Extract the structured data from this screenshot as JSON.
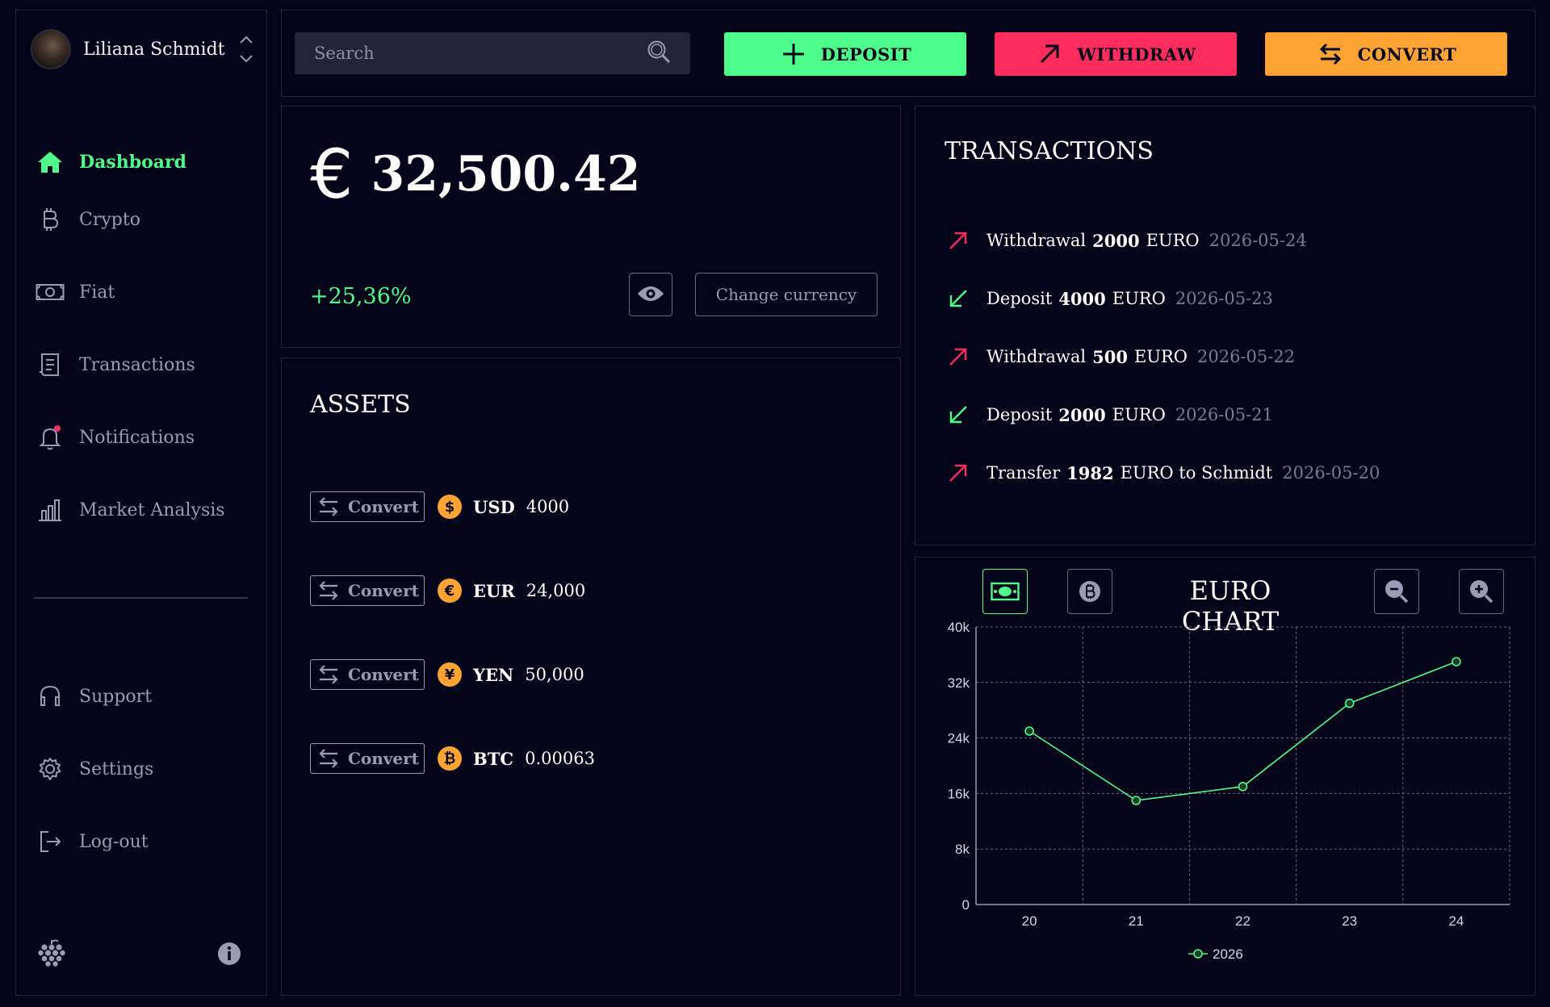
{
  "user": {
    "name": "Liliana Schmidt"
  },
  "nav": {
    "items": [
      {
        "label": "Dashboard",
        "icon": "home-icon"
      },
      {
        "label": "Crypto",
        "icon": "bitcoin-icon"
      },
      {
        "label": "Fiat",
        "icon": "banknote-icon"
      },
      {
        "label": "Transactions",
        "icon": "receipt-icon"
      },
      {
        "label": "Notifications",
        "icon": "bell-icon"
      },
      {
        "label": "Market Analysis",
        "icon": "bar-chart-icon"
      }
    ],
    "bottom": [
      {
        "label": "Support",
        "icon": "headset-icon"
      },
      {
        "label": "Settings",
        "icon": "gear-icon"
      },
      {
        "label": "Log-out",
        "icon": "logout-icon"
      }
    ]
  },
  "search": {
    "placeholder": "Search"
  },
  "actions": {
    "deposit": "DEPOSIT",
    "withdraw": "WITHDRAW",
    "convert": "CONVERT"
  },
  "balance": {
    "currency_symbol": "€",
    "amount": "32,500.42",
    "change": "+25,36%",
    "change_currency_label": "Change currency"
  },
  "assets": {
    "title": "ASSETS",
    "convert_label": "Convert",
    "items": [
      {
        "symbol": "$",
        "code": "USD",
        "amount": "4000"
      },
      {
        "symbol": "€",
        "code": "EUR",
        "amount": "24,000"
      },
      {
        "symbol": "¥",
        "code": "YEN",
        "amount": "50,000"
      },
      {
        "symbol": "₿",
        "code": "BTC",
        "amount": "0.00063"
      }
    ]
  },
  "transactions": {
    "title": "TRANSACTIONS",
    "items": [
      {
        "direction": "out",
        "type": "Withdrawal",
        "amount": "2000",
        "currency": "EURO",
        "date": "2026-05-24"
      },
      {
        "direction": "in",
        "type": "Deposit",
        "amount": "4000",
        "currency": "EURO",
        "date": "2026-05-23"
      },
      {
        "direction": "out",
        "type": "Withdrawal",
        "amount": "500",
        "currency": "EURO",
        "date": "2026-05-22"
      },
      {
        "direction": "in",
        "type": "Deposit",
        "amount": "2000",
        "currency": "EURO",
        "date": "2026-05-21"
      },
      {
        "direction": "out",
        "type": "Transfer",
        "amount": "1982",
        "currency": "EURO to Schmidt",
        "date": "2026-05-20"
      }
    ]
  },
  "colors": {
    "accent_green": "#4dff8a",
    "accent_red": "#ff2d5e",
    "accent_orange": "#ffa333",
    "background": "#03031a"
  },
  "chart_data": {
    "type": "line",
    "title": "EURO CHART",
    "categories": [
      "20",
      "21",
      "22",
      "23",
      "24"
    ],
    "series": [
      {
        "name": "2026",
        "values": [
          25000,
          15000,
          17000,
          29000,
          35000
        ]
      }
    ],
    "yticks": [
      "0",
      "8k",
      "16k",
      "24k",
      "32k",
      "40k"
    ],
    "ylim": [
      0,
      40000
    ],
    "grid": true,
    "legend": "bottom"
  }
}
